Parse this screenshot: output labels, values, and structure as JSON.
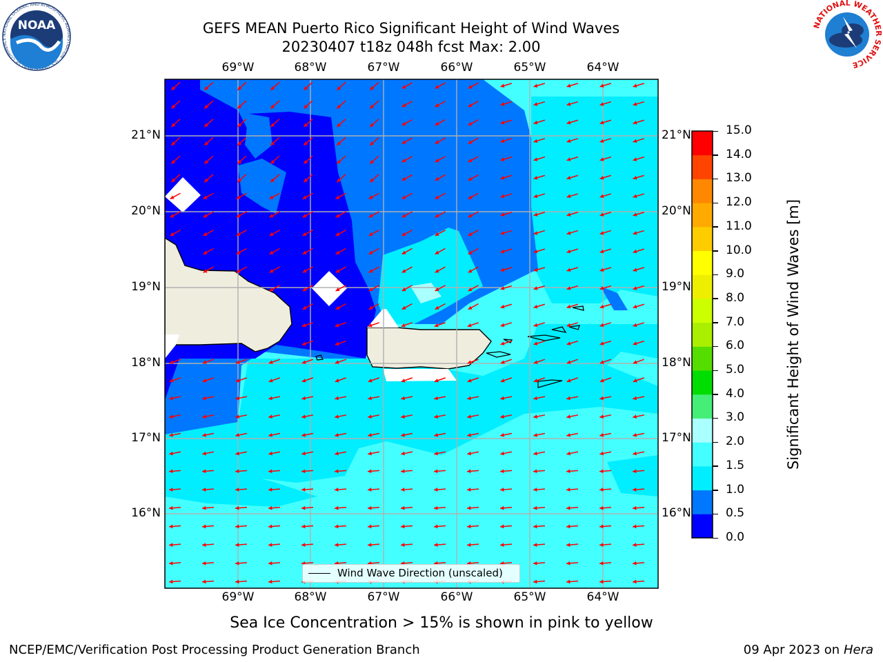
{
  "title": {
    "line1": "GEFS MEAN Puerto Rico Significant Height of Wind Waves",
    "line2": "20230407 t18z 048h fcst   Max: 2.00"
  },
  "logos": {
    "noaa": {
      "text": "NOAA",
      "ring": "NATIONAL OCEANIC AND ATMOSPHERIC ADMINISTRATION · U.S. DEPARTMENT OF COMMERCE ·"
    },
    "nws": {
      "ring": "NATIONAL WEATHER SERVICE"
    }
  },
  "map": {
    "lon_ticks": [
      "69°W",
      "68°W",
      "67°W",
      "66°W",
      "65°W",
      "64°W"
    ],
    "lat_ticks": [
      "21°N",
      "20°N",
      "19°N",
      "18°N",
      "17°N",
      "16°N"
    ],
    "legend_label": "Wind Wave Direction (unscaled)",
    "arrow_color": "#ff0000",
    "land_color": "#efedde"
  },
  "colorbar": {
    "ticks": [
      "15.0",
      "14.0",
      "13.0",
      "12.0",
      "11.0",
      "10.0",
      "9.0",
      "8.0",
      "7.0",
      "6.0",
      "5.0",
      "4.0",
      "3.0",
      "2.0",
      "1.5",
      "1.0",
      "0.5",
      "0.0"
    ],
    "colors": [
      "#0000ff",
      "#0077ff",
      "#00eeff",
      "#44ffff",
      "#aaffff",
      "#44ee77",
      "#00dd00",
      "#55dd00",
      "#aaee00",
      "#ccff00",
      "#eeee00",
      "#ffff00",
      "#ffcc00",
      "#ffaa00",
      "#ff8800",
      "#ff4400",
      "#ff0000"
    ],
    "label": "Significant Height of Wind Waves [m]"
  },
  "subnote": "Sea Ice Concentration > 15% is shown in pink to yellow",
  "footer": {
    "left": "NCEP/EMC/Verification Post Processing Product Generation Branch",
    "date": "09 Apr 2023 on ",
    "host": "Hera"
  }
}
